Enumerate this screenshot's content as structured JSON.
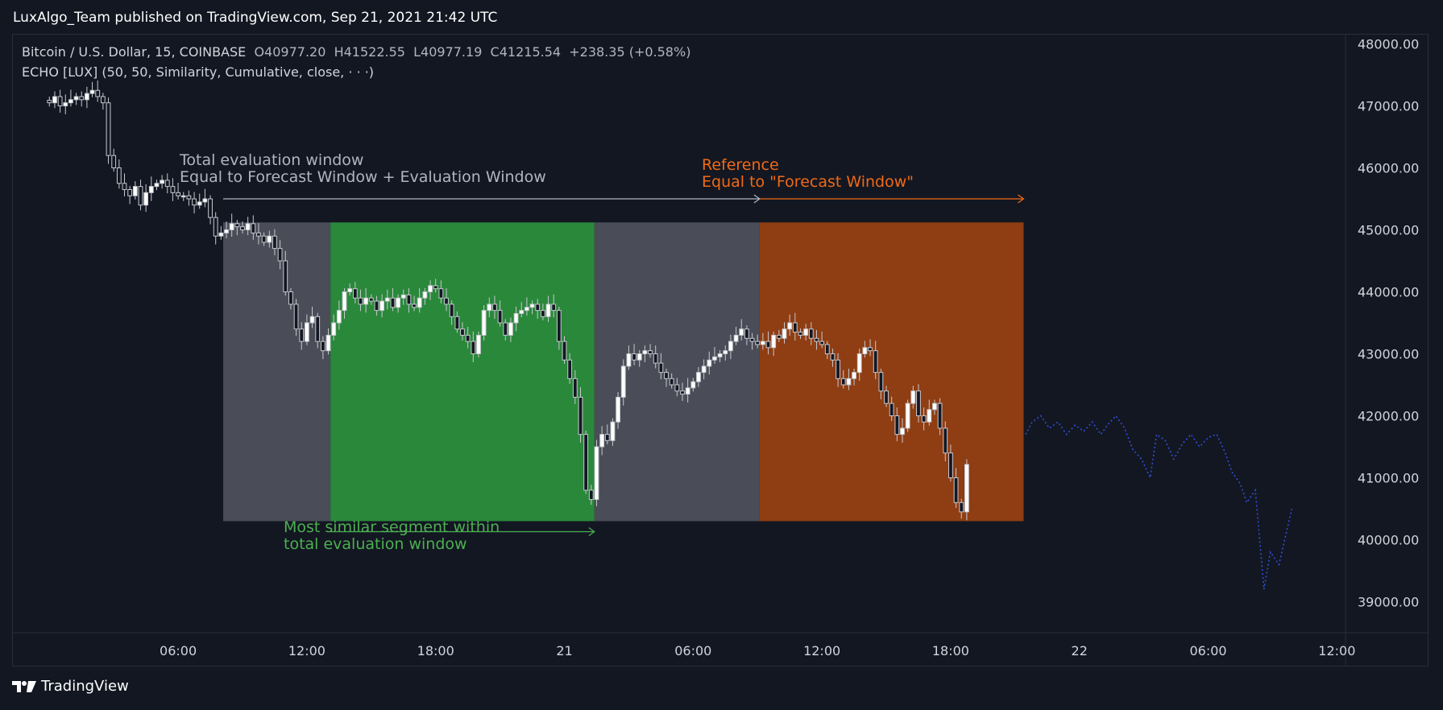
{
  "header": {
    "published": "LuxAlgo_Team published on TradingView.com, Sep 21, 2021 21:42 UTC"
  },
  "legend": {
    "symbol": "Bitcoin / U.S. Dollar, 15, COINBASE",
    "o": "O40977.20",
    "h": "H41522.55",
    "l": "L40977.19",
    "c": "C41215.54",
    "change": "+238.35 (+0.58%)",
    "indicator": "ECHO [LUX] (50, 50, Similarity, Cumulative, close, · · ·)"
  },
  "annotations": {
    "total_title": "Total evaluation window",
    "total_sub": "Equal to Forecast Window + Evaluation Window",
    "reference_title": "Reference",
    "reference_sub": "Equal to \"Forecast Window\"",
    "similar_1": "Most similar segment within",
    "similar_2": "total evaluation window"
  },
  "footer": {
    "brand": "TradingView"
  },
  "colors": {
    "background": "#131722",
    "gray_zone": "#4a4d57",
    "green_zone": "#2a883b",
    "orange_zone": "#8f3d12",
    "orange_text": "#f06a16",
    "green_text": "#4caf50",
    "forecast": "#2e4fd6"
  },
  "chart_data": {
    "type": "candlestick",
    "symbol": "Bitcoin / U.S. Dollar",
    "interval": "15",
    "exchange": "COINBASE",
    "ylim": [
      38500,
      48150
    ],
    "yticks": [
      "48000.00",
      "47000.00",
      "46000.00",
      "45000.00",
      "44000.00",
      "43000.00",
      "42000.00",
      "41000.00",
      "40000.00",
      "39000.00"
    ],
    "ytick_values": [
      48000,
      47000,
      46000,
      45000,
      44000,
      43000,
      42000,
      41000,
      40000,
      39000
    ],
    "xlim_hours": [
      -1.7,
      60.4
    ],
    "xticks": [
      "06:00",
      "12:00",
      "18:00",
      "21",
      "06:00",
      "12:00",
      "18:00",
      "22",
      "06:00",
      "12:00"
    ],
    "xtick_hours": [
      6,
      12,
      18,
      24,
      30,
      36,
      42,
      48,
      54,
      60
    ],
    "time_origin": "Sep 20 00:00",
    "zones": [
      {
        "name": "gray-1",
        "color": "#4a4d57",
        "x": [
          8.1,
          13.1
        ],
        "y": [
          40300,
          45120
        ]
      },
      {
        "name": "green-similar",
        "color": "#2a883b",
        "x": [
          13.1,
          25.4
        ],
        "y": [
          40300,
          45120
        ]
      },
      {
        "name": "gray-2",
        "color": "#4a4d57",
        "x": [
          25.4,
          33.1
        ],
        "y": [
          40300,
          45120
        ]
      },
      {
        "name": "orange-reference",
        "color": "#8f3d12",
        "x": [
          33.1,
          45.4
        ],
        "y": [
          40300,
          45120
        ]
      }
    ],
    "arrows": [
      {
        "name": "total-window-arrow",
        "color": "#b2b5be",
        "x": [
          8.1,
          33.1
        ],
        "y": 45500
      },
      {
        "name": "reference-arrow",
        "color": "#f06a16",
        "x": [
          33.1,
          45.4
        ],
        "y": 45500
      },
      {
        "name": "similar-arrow",
        "color": "#4caf50",
        "x": [
          13.1,
          25.4
        ],
        "y": 40130
      }
    ],
    "candles_close": [
      47050,
      47150,
      47000,
      47050,
      47100,
      47150,
      47100,
      47200,
      47250,
      47150,
      47050,
      46200,
      46000,
      45750,
      45650,
      45550,
      45700,
      45400,
      45600,
      45700,
      45750,
      45800,
      45700,
      45600,
      45550,
      45550,
      45500,
      45400,
      45450,
      45500,
      45200,
      44900,
      44950,
      45000,
      45100,
      45050,
      45000,
      45100,
      44950,
      44900,
      44800,
      44900,
      44700,
      44500,
      44000,
      43800,
      43400,
      43200,
      43500,
      43600,
      43200,
      43050,
      43300,
      43500,
      43700,
      44000,
      44050,
      43900,
      43800,
      43900,
      43850,
      43700,
      43850,
      43900,
      43750,
      43900,
      43950,
      43800,
      43750,
      43900,
      44000,
      44100,
      44050,
      43900,
      43800,
      43600,
      43400,
      43300,
      43200,
      43000,
      43300,
      43700,
      43800,
      43700,
      43500,
      43300,
      43500,
      43650,
      43700,
      43750,
      43800,
      43700,
      43600,
      43800,
      43700,
      43200,
      42900,
      42600,
      42300,
      41700,
      40800,
      40650,
      41500,
      41700,
      41600,
      41900,
      42300,
      42800,
      43000,
      42900,
      43000,
      43050,
      43000,
      42850,
      42700,
      42600,
      42500,
      42400,
      42350,
      42450,
      42550,
      42700,
      42800,
      42900,
      42950,
      43000,
      43050,
      43200,
      43300,
      43400,
      43250,
      43200,
      43150,
      43200,
      43100,
      43300,
      43250,
      43400,
      43500,
      43350,
      43300,
      43400,
      43250,
      43200,
      43150,
      43000,
      42900,
      42600,
      42500,
      42600,
      42700,
      43000,
      43100,
      43050,
      42700,
      42400,
      42200,
      42000,
      41700,
      41800,
      42200,
      42400,
      42000,
      41900,
      42100,
      42200,
      41800,
      41400,
      41000,
      40600,
      40450,
      41215
    ],
    "forecast_path": [
      [
        45.5,
        41700
      ],
      [
        45.8,
        41900
      ],
      [
        46.2,
        42000
      ],
      [
        46.6,
        41800
      ],
      [
        47,
        41900
      ],
      [
        47.4,
        41700
      ],
      [
        47.8,
        41850
      ],
      [
        48.2,
        41750
      ],
      [
        48.6,
        41900
      ],
      [
        49,
        41700
      ],
      [
        49.3,
        41850
      ],
      [
        49.7,
        42000
      ],
      [
        50.1,
        41800
      ],
      [
        50.5,
        41450
      ],
      [
        50.9,
        41300
      ],
      [
        51.3,
        41000
      ],
      [
        51.6,
        41700
      ],
      [
        52,
        41600
      ],
      [
        52.4,
        41300
      ],
      [
        52.8,
        41550
      ],
      [
        53.2,
        41700
      ],
      [
        53.6,
        41500
      ],
      [
        54,
        41650
      ],
      [
        54.4,
        41700
      ],
      [
        54.8,
        41400
      ],
      [
        55.1,
        41100
      ],
      [
        55.5,
        40900
      ],
      [
        55.8,
        40600
      ],
      [
        56.2,
        40800
      ],
      [
        56.6,
        39200
      ],
      [
        56.9,
        39800
      ],
      [
        57.3,
        39600
      ],
      [
        57.7,
        40200
      ],
      [
        57.9,
        40500
      ]
    ]
  }
}
